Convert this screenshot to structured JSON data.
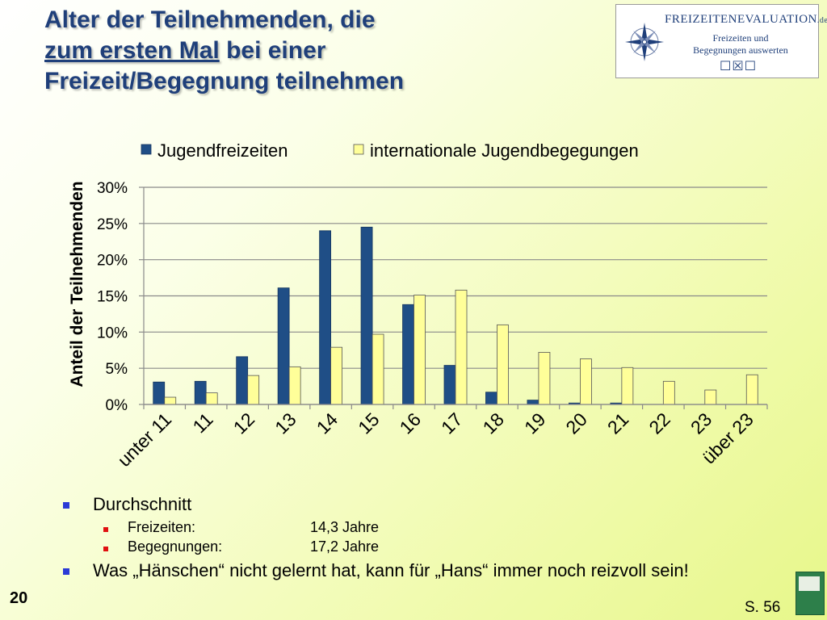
{
  "slide": {
    "title_line1": "Alter der Teilnehmenden, die",
    "title_line2_underlined": "zum ersten Mal",
    "title_line2_rest": " bei einer",
    "title_line3": "Freizeit/Begegnung teilnehmen",
    "page_number": "20",
    "source_ref": "S. 56"
  },
  "logo": {
    "brand_main": "FREIZEITENEVALUATION",
    "brand_suffix": ".de",
    "sub_line1": "Freizeiten und",
    "sub_line2": "Begegnungen auswerten",
    "checkbox_glyphs": "☐☒☐"
  },
  "bullets": {
    "average_heading": "Durchschnitt",
    "items": [
      {
        "label": "Freizeiten:",
        "value": "14,3 Jahre"
      },
      {
        "label": "Begegnungen:",
        "value": "17,2 Jahre"
      }
    ],
    "saying": "Was „Hänschen“ nicht gelernt hat, kann für „Hans“ immer noch reizvoll sein!"
  },
  "chart_data": {
    "type": "bar",
    "title": "",
    "xlabel": "",
    "ylabel": "Anteil der Teilnehmenden",
    "categories": [
      "unter 11",
      "11",
      "12",
      "13",
      "14",
      "15",
      "16",
      "17",
      "18",
      "19",
      "20",
      "21",
      "22",
      "23",
      "über 23"
    ],
    "series": [
      {
        "name": "Jugendfreizeiten",
        "color": "#1f4e86",
        "values": [
          3.1,
          3.2,
          6.6,
          16.1,
          24.0,
          24.5,
          13.8,
          5.4,
          1.7,
          0.6,
          0.2,
          0.2,
          0,
          0,
          0
        ]
      },
      {
        "name": "internationale Jugendbegegungen",
        "color": "#ffff99",
        "values": [
          1.0,
          1.6,
          4.0,
          5.2,
          7.9,
          9.7,
          15.1,
          15.8,
          11.0,
          7.2,
          6.3,
          5.1,
          3.2,
          2.0,
          4.1
        ]
      }
    ],
    "ylim": [
      0,
      30
    ],
    "yticks": [
      "0%",
      "5%",
      "10%",
      "15%",
      "20%",
      "25%",
      "30%"
    ],
    "grid": true,
    "legend": "top"
  }
}
